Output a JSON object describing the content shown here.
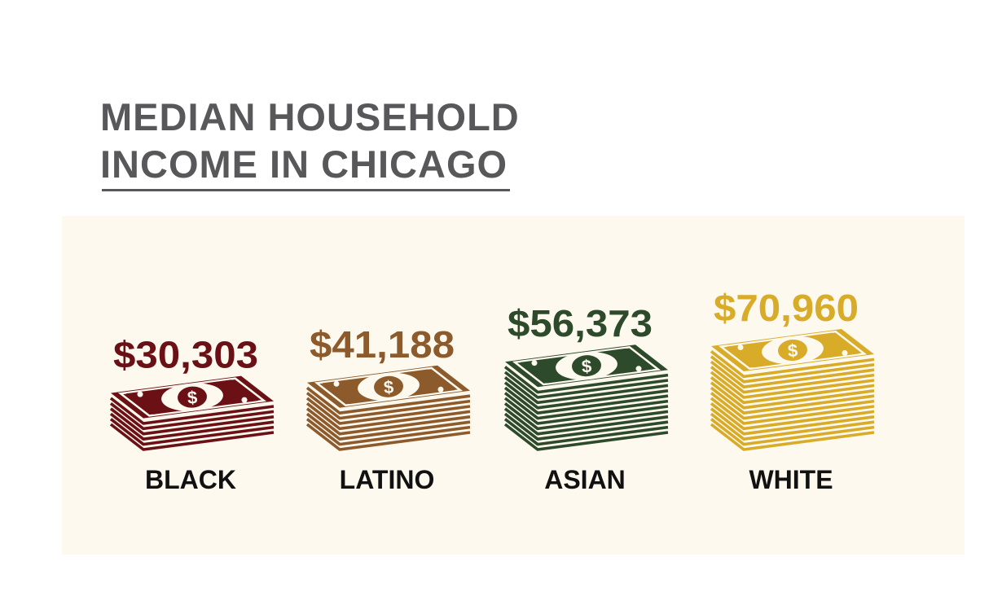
{
  "title": {
    "line1": "MEDIAN HOUSEHOLD",
    "line2": "INCOME IN CHICAGO"
  },
  "chart_data": {
    "type": "bar",
    "title": "MEDIAN HOUSEHOLD INCOME IN CHICAGO",
    "categories": [
      "BLACK",
      "LATINO",
      "ASIAN",
      "WHITE"
    ],
    "values": [
      30303,
      41188,
      56373,
      70960
    ],
    "value_labels": [
      "$30,303",
      "$41,188",
      "$56,373",
      "$70,960"
    ],
    "colors": [
      "#6b1015",
      "#8c5a2b",
      "#2d4a2b",
      "#d8ab28"
    ],
    "mark": "stack-of-bills-icon",
    "panel_color": "#fdf9ef",
    "label_color": "#111111"
  }
}
